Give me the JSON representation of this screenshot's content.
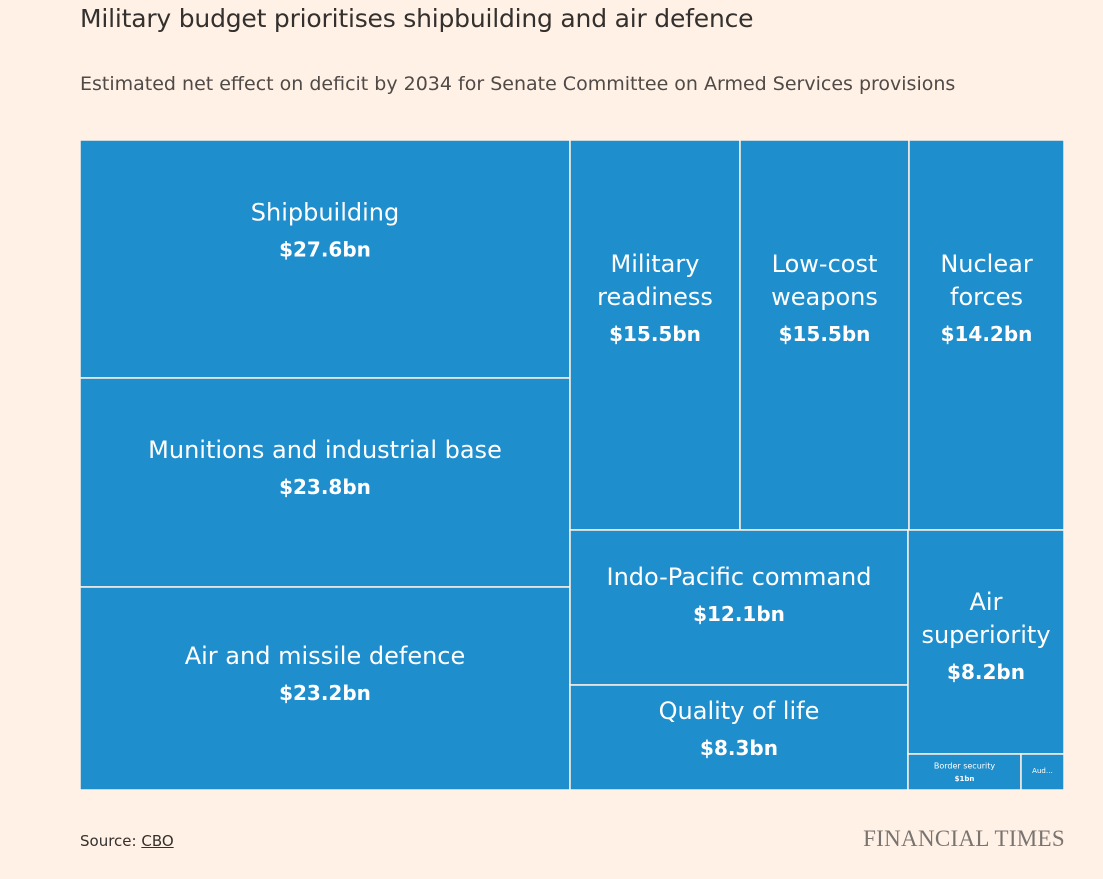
{
  "title": "Military budget prioritises shipbuilding and air defence",
  "subtitle": "Estimated net effect on deficit by 2034 for Senate Committee on Armed Services provisions",
  "source_label": "Source: ",
  "source_link": "CBO",
  "brand": "FINANCIAL TIMES",
  "colors": {
    "background": "#FFF1E5",
    "tile": "#1F8ECD",
    "tile_border": "#FFF1E5",
    "tile_text": "#FFFFFF"
  },
  "chart_data": {
    "type": "treemap",
    "unit": "$bn",
    "items": [
      {
        "name": "Shipbuilding",
        "label_lines": [
          "Shipbuilding"
        ],
        "value": 27.6,
        "value_label": "$27.6bn"
      },
      {
        "name": "Munitions and industrial base",
        "label_lines": [
          "Munitions and industrial base"
        ],
        "value": 23.8,
        "value_label": "$23.8bn"
      },
      {
        "name": "Air and missile defence",
        "label_lines": [
          "Air and missile defence"
        ],
        "value": 23.2,
        "value_label": "$23.2bn"
      },
      {
        "name": "Military readiness",
        "label_lines": [
          "Military",
          "readiness"
        ],
        "value": 15.5,
        "value_label": "$15.5bn"
      },
      {
        "name": "Low-cost weapons",
        "label_lines": [
          "Low-cost",
          "weapons"
        ],
        "value": 15.5,
        "value_label": "$15.5bn"
      },
      {
        "name": "Nuclear forces",
        "label_lines": [
          "Nuclear",
          "forces"
        ],
        "value": 14.2,
        "value_label": "$14.2bn"
      },
      {
        "name": "Indo-Pacific command",
        "label_lines": [
          "Indo-Pacific command"
        ],
        "value": 12.1,
        "value_label": "$12.1bn"
      },
      {
        "name": "Quality of life",
        "label_lines": [
          "Quality of life"
        ],
        "value": 8.3,
        "value_label": "$8.3bn"
      },
      {
        "name": "Air superiority",
        "label_lines": [
          "Air",
          "superiority"
        ],
        "value": 8.2,
        "value_label": "$8.2bn"
      },
      {
        "name": "Border security",
        "label_lines": [
          "Border security"
        ],
        "value": 1,
        "value_label": "$1bn"
      },
      {
        "name": "Aud…",
        "label_lines": [
          "Aud…"
        ],
        "value": null,
        "value_label": ""
      }
    ]
  }
}
